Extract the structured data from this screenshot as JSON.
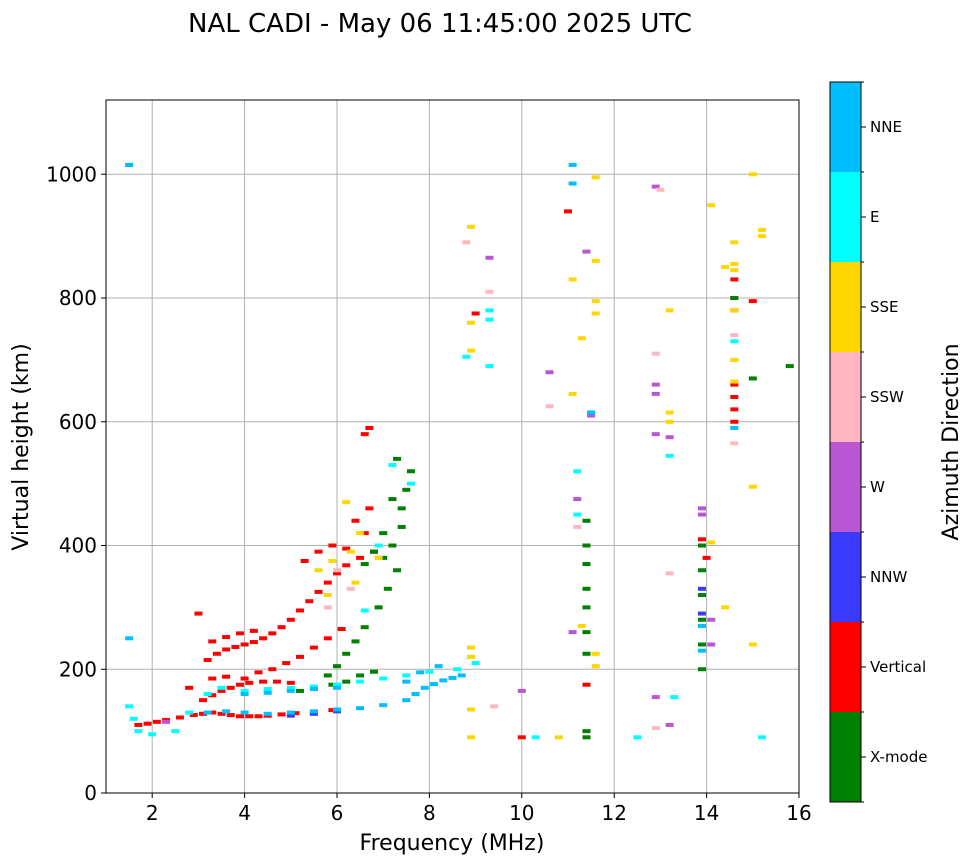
{
  "chart_data": {
    "type": "scatter",
    "title": "NAL CADI - May 06 11:45:00 2025 UTC",
    "xlabel": "Frequency (MHz)",
    "ylabel": "Virtual height (km)",
    "xlim": [
      1,
      16
    ],
    "ylim": [
      0,
      1120
    ],
    "xticks": [
      2,
      4,
      6,
      8,
      10,
      12,
      14,
      16
    ],
    "yticks": [
      0,
      200,
      400,
      600,
      800,
      1000
    ],
    "grid": true,
    "colorbar": {
      "label": "Azimuth Direction",
      "categories": [
        "X-mode",
        "Vertical",
        "NNW",
        "W",
        "SSW",
        "SSE",
        "E",
        "NNE"
      ],
      "colors": [
        "#008000",
        "#ff0000",
        "#3a3aff",
        "#ba55d3",
        "#ffb6c1",
        "#ffd700",
        "#00ffff",
        "#00bfff"
      ]
    },
    "series": [
      {
        "name": "Vertical",
        "color": "#ff0000",
        "points": [
          [
            1.7,
            110
          ],
          [
            1.9,
            112
          ],
          [
            2.1,
            115
          ],
          [
            2.3,
            118
          ],
          [
            2.6,
            122
          ],
          [
            2.9,
            126
          ],
          [
            3.1,
            128
          ],
          [
            3.3,
            130
          ],
          [
            3.5,
            128
          ],
          [
            3.7,
            126
          ],
          [
            3.9,
            124
          ],
          [
            4.1,
            124
          ],
          [
            4.3,
            124
          ],
          [
            4.5,
            125
          ],
          [
            4.8,
            127
          ],
          [
            5.1,
            129
          ],
          [
            5.5,
            131
          ],
          [
            5.9,
            134
          ],
          [
            3.1,
            150
          ],
          [
            3.3,
            158
          ],
          [
            3.5,
            165
          ],
          [
            3.7,
            170
          ],
          [
            3.9,
            175
          ],
          [
            4.1,
            178
          ],
          [
            4.4,
            180
          ],
          [
            4.7,
            180
          ],
          [
            5.0,
            178
          ],
          [
            3.3,
            185
          ],
          [
            3.6,
            188
          ],
          [
            4.0,
            185
          ],
          [
            3.2,
            215
          ],
          [
            3.4,
            225
          ],
          [
            3.6,
            232
          ],
          [
            3.8,
            236
          ],
          [
            4.0,
            240
          ],
          [
            4.2,
            244
          ],
          [
            4.4,
            250
          ],
          [
            4.6,
            258
          ],
          [
            4.8,
            268
          ],
          [
            5.0,
            280
          ],
          [
            5.2,
            295
          ],
          [
            5.4,
            310
          ],
          [
            5.6,
            325
          ],
          [
            5.8,
            340
          ],
          [
            6.0,
            355
          ],
          [
            6.2,
            368
          ],
          [
            6.5,
            380
          ],
          [
            6.8,
            390
          ],
          [
            3.3,
            245
          ],
          [
            3.6,
            252
          ],
          [
            3.9,
            258
          ],
          [
            4.2,
            262
          ],
          [
            4.3,
            195
          ],
          [
            4.6,
            200
          ],
          [
            4.9,
            210
          ],
          [
            5.2,
            220
          ],
          [
            5.5,
            235
          ],
          [
            5.8,
            250
          ],
          [
            6.1,
            265
          ],
          [
            5.3,
            375
          ],
          [
            5.6,
            390
          ],
          [
            5.9,
            400
          ],
          [
            6.2,
            395
          ],
          [
            6.6,
            420
          ],
          [
            6.7,
            590
          ],
          [
            6.6,
            580
          ],
          [
            6.4,
            440
          ],
          [
            6.7,
            460
          ],
          [
            3.0,
            290
          ],
          [
            2.8,
            170
          ],
          [
            10.0,
            90
          ],
          [
            11.4,
            175
          ],
          [
            11.0,
            940
          ],
          [
            14.6,
            660
          ],
          [
            14.6,
            640
          ],
          [
            14.6,
            620
          ],
          [
            14.6,
            600
          ],
          [
            14.6,
            780
          ],
          [
            14.6,
            800
          ],
          [
            14.6,
            830
          ],
          [
            15.0,
            795
          ],
          [
            9.0,
            775
          ],
          [
            13.9,
            410
          ],
          [
            14.0,
            380
          ]
        ]
      },
      {
        "name": "X-mode",
        "color": "#008000",
        "points": [
          [
            5.8,
            190
          ],
          [
            6.0,
            205
          ],
          [
            6.2,
            225
          ],
          [
            6.4,
            245
          ],
          [
            6.6,
            268
          ],
          [
            6.9,
            300
          ],
          [
            7.1,
            330
          ],
          [
            7.3,
            360
          ],
          [
            7.0,
            380
          ],
          [
            7.2,
            400
          ],
          [
            7.4,
            430
          ],
          [
            7.4,
            460
          ],
          [
            7.5,
            490
          ],
          [
            7.6,
            520
          ],
          [
            7.3,
            540
          ],
          [
            6.8,
            390
          ],
          [
            6.6,
            370
          ],
          [
            7.0,
            420
          ],
          [
            7.2,
            475
          ],
          [
            5.2,
            165
          ],
          [
            5.5,
            170
          ],
          [
            5.9,
            175
          ],
          [
            6.2,
            180
          ],
          [
            6.5,
            190
          ],
          [
            6.8,
            196
          ],
          [
            11.4,
            440
          ],
          [
            11.4,
            400
          ],
          [
            11.4,
            370
          ],
          [
            11.4,
            330
          ],
          [
            11.4,
            300
          ],
          [
            11.4,
            260
          ],
          [
            11.4,
            225
          ],
          [
            11.4,
            100
          ],
          [
            11.4,
            90
          ],
          [
            13.9,
            400
          ],
          [
            13.9,
            360
          ],
          [
            13.9,
            320
          ],
          [
            13.9,
            280
          ],
          [
            13.9,
            240
          ],
          [
            13.9,
            200
          ],
          [
            14.6,
            800
          ],
          [
            15.0,
            670
          ],
          [
            15.8,
            690
          ]
        ]
      },
      {
        "name": "NNW",
        "color": "#3a3aff",
        "points": [
          [
            5.0,
            125
          ],
          [
            5.5,
            128
          ],
          [
            6.0,
            132
          ],
          [
            13.9,
            290
          ],
          [
            13.9,
            330
          ]
        ]
      },
      {
        "name": "W",
        "color": "#ba55d3",
        "points": [
          [
            2.3,
            115
          ],
          [
            10.0,
            165
          ],
          [
            12.9,
            155
          ],
          [
            13.2,
            110
          ],
          [
            12.9,
            980
          ],
          [
            12.9,
            660
          ],
          [
            12.9,
            645
          ],
          [
            12.9,
            580
          ],
          [
            13.2,
            575
          ],
          [
            9.3,
            865
          ],
          [
            11.4,
            875
          ],
          [
            10.6,
            680
          ],
          [
            11.5,
            610
          ],
          [
            11.2,
            475
          ],
          [
            11.1,
            260
          ],
          [
            13.9,
            460
          ],
          [
            13.9,
            450
          ],
          [
            14.1,
            280
          ],
          [
            14.1,
            240
          ]
        ]
      },
      {
        "name": "SSW",
        "color": "#ffb6c1",
        "points": [
          [
            8.8,
            890
          ],
          [
            9.3,
            810
          ],
          [
            10.6,
            625
          ],
          [
            12.9,
            710
          ],
          [
            12.9,
            105
          ],
          [
            13.2,
            355
          ],
          [
            14.6,
            565
          ],
          [
            14.6,
            700
          ],
          [
            14.6,
            740
          ],
          [
            5.8,
            300
          ],
          [
            6.0,
            360
          ],
          [
            6.3,
            330
          ],
          [
            9.4,
            140
          ],
          [
            11.2,
            430
          ],
          [
            13.0,
            975
          ]
        ]
      },
      {
        "name": "SSE",
        "color": "#ffd700",
        "points": [
          [
            5.6,
            360
          ],
          [
            5.9,
            375
          ],
          [
            6.3,
            390
          ],
          [
            6.4,
            340
          ],
          [
            6.5,
            420
          ],
          [
            6.9,
            380
          ],
          [
            6.2,
            470
          ],
          [
            5.8,
            320
          ],
          [
            8.9,
            915
          ],
          [
            8.9,
            760
          ],
          [
            8.9,
            715
          ],
          [
            8.9,
            235
          ],
          [
            8.9,
            220
          ],
          [
            8.9,
            135
          ],
          [
            8.9,
            90
          ],
          [
            10.8,
            90
          ],
          [
            11.1,
            830
          ],
          [
            11.1,
            645
          ],
          [
            11.3,
            735
          ],
          [
            11.6,
            995
          ],
          [
            11.6,
            860
          ],
          [
            11.6,
            795
          ],
          [
            11.6,
            775
          ],
          [
            11.3,
            270
          ],
          [
            11.6,
            225
          ],
          [
            11.6,
            205
          ],
          [
            13.2,
            780
          ],
          [
            13.2,
            615
          ],
          [
            13.2,
            600
          ],
          [
            14.1,
            950
          ],
          [
            14.6,
            890
          ],
          [
            14.6,
            855
          ],
          [
            14.6,
            845
          ],
          [
            14.6,
            780
          ],
          [
            14.6,
            700
          ],
          [
            14.6,
            665
          ],
          [
            15.0,
            1000
          ],
          [
            15.2,
            910
          ],
          [
            15.2,
            900
          ],
          [
            15.0,
            495
          ],
          [
            15.0,
            240
          ],
          [
            14.4,
            300
          ],
          [
            14.1,
            405
          ],
          [
            14.4,
            850
          ]
        ]
      },
      {
        "name": "E",
        "color": "#00ffff",
        "points": [
          [
            1.5,
            140
          ],
          [
            1.6,
            120
          ],
          [
            1.7,
            100
          ],
          [
            2.0,
            95
          ],
          [
            2.5,
            100
          ],
          [
            2.8,
            130
          ],
          [
            3.2,
            160
          ],
          [
            3.5,
            170
          ],
          [
            4.0,
            165
          ],
          [
            4.5,
            168
          ],
          [
            5.0,
            170
          ],
          [
            5.5,
            172
          ],
          [
            6.0,
            175
          ],
          [
            6.5,
            180
          ],
          [
            7.0,
            185
          ],
          [
            7.5,
            190
          ],
          [
            8.0,
            196
          ],
          [
            8.6,
            200
          ],
          [
            9.0,
            210
          ],
          [
            6.6,
            295
          ],
          [
            7.2,
            530
          ],
          [
            7.6,
            500
          ],
          [
            6.9,
            400
          ],
          [
            9.3,
            780
          ],
          [
            9.3,
            765
          ],
          [
            9.3,
            690
          ],
          [
            8.8,
            705
          ],
          [
            11.2,
            520
          ],
          [
            11.2,
            450
          ],
          [
            13.2,
            545
          ],
          [
            13.3,
            155
          ],
          [
            12.5,
            90
          ],
          [
            15.2,
            90
          ],
          [
            14.6,
            730
          ],
          [
            10.3,
            90
          ]
        ]
      },
      {
        "name": "NNE",
        "color": "#00bfff",
        "points": [
          [
            3.2,
            130
          ],
          [
            3.6,
            132
          ],
          [
            4.0,
            130
          ],
          [
            4.5,
            128
          ],
          [
            5.0,
            130
          ],
          [
            5.5,
            132
          ],
          [
            6.0,
            135
          ],
          [
            6.5,
            137
          ],
          [
            7.0,
            142
          ],
          [
            7.5,
            150
          ],
          [
            7.7,
            160
          ],
          [
            7.9,
            170
          ],
          [
            8.1,
            176
          ],
          [
            8.3,
            182
          ],
          [
            8.5,
            186
          ],
          [
            8.7,
            190
          ],
          [
            7.8,
            195
          ],
          [
            8.2,
            205
          ],
          [
            4.0,
            160
          ],
          [
            4.5,
            162
          ],
          [
            5.0,
            165
          ],
          [
            5.5,
            168
          ],
          [
            6.0,
            170
          ],
          [
            1.5,
            250
          ],
          [
            1.5,
            1015
          ],
          [
            11.1,
            1015
          ],
          [
            11.1,
            985
          ],
          [
            11.5,
            615
          ],
          [
            13.9,
            270
          ],
          [
            13.9,
            230
          ],
          [
            14.6,
            590
          ],
          [
            7.5,
            180
          ]
        ]
      }
    ]
  }
}
